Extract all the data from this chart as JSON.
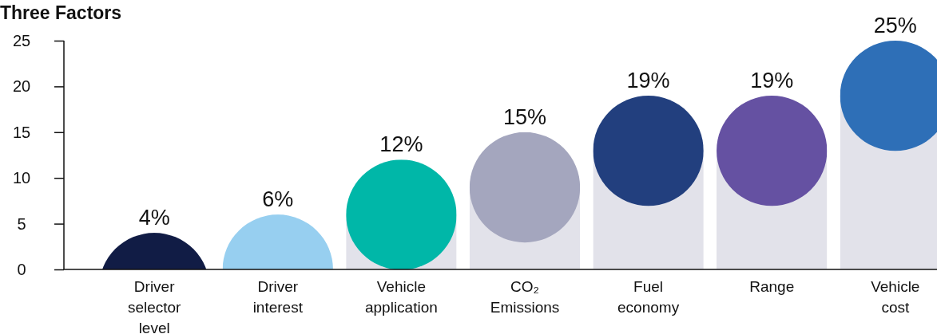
{
  "chart_data": {
    "type": "bar",
    "title": "Three Factors",
    "categories": [
      "Driver selector level",
      "Driver interest",
      "Vehicle application",
      "CO₂ Emissions",
      "Fuel economy",
      "Range",
      "Vehicle cost"
    ],
    "values": [
      4,
      6,
      12,
      15,
      19,
      19,
      25
    ],
    "value_labels": [
      "4%",
      "6%",
      "12%",
      "15%",
      "19%",
      "19%",
      "25%"
    ],
    "colors": [
      "#111c45",
      "#97cff0",
      "#00b7a8",
      "#a4a6be",
      "#223f7e",
      "#6551a2",
      "#2e6fb7"
    ],
    "ylim": [
      0,
      25
    ],
    "yticks": [
      0,
      5,
      10,
      15,
      20,
      25
    ],
    "grid": false
  }
}
